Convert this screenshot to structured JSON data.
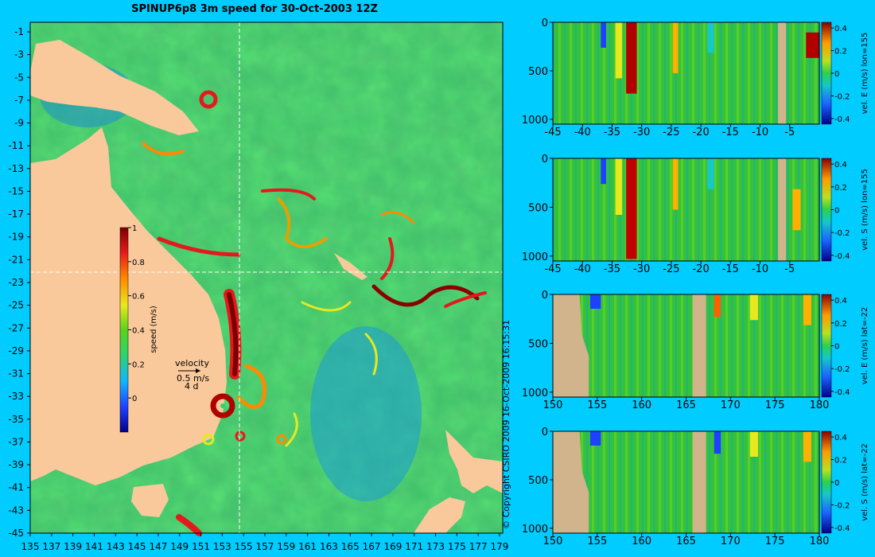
{
  "title": "SPINUP6p8 3m speed for 30-Oct-2003 12Z",
  "copyright": "© Copyright CSIRO 2009  16-Oct-2009 16:15:31",
  "colors": {
    "background": "#00ccff",
    "land": "#f9c99b",
    "section_land": "#d2b48c",
    "crosshair": "#ffffff"
  },
  "map": {
    "lon_ticks": [
      "135",
      "137",
      "139",
      "141",
      "143",
      "145",
      "147",
      "149",
      "151",
      "153",
      "155",
      "157",
      "159",
      "161",
      "163",
      "165",
      "167",
      "169",
      "171",
      "173",
      "175",
      "177",
      "179"
    ],
    "lat_ticks": [
      "-1",
      "-3",
      "-5",
      "-7",
      "-9",
      "-11",
      "-13",
      "-15",
      "-17",
      "-19",
      "-21",
      "-23",
      "-25",
      "-27",
      "-29",
      "-31",
      "-33",
      "-35",
      "-37",
      "-39",
      "-41",
      "-43",
      "-45"
    ],
    "section_lon": 155,
    "section_lat": -22,
    "speed_colorbar": {
      "label": "speed (m/s)",
      "ticks": [
        "0",
        "0.2",
        "0.4",
        "0.6",
        "0.8",
        "1"
      ],
      "range": [
        -0.2,
        1
      ]
    },
    "velocity_key": {
      "label": "velocity",
      "speed": "0.5 m/s",
      "duration": "4 d"
    }
  },
  "sections": [
    {
      "id": "uE-lon155",
      "colorbar_label": "vel. E (m/s) lon=155",
      "x_ticks": [
        "-45",
        "-40",
        "-35",
        "-30",
        "-25",
        "-20",
        "-15",
        "-10",
        "-5"
      ],
      "y_ticks": [
        "0",
        "500",
        "1000"
      ],
      "cb_ticks": [
        "0.4",
        "0.2",
        "0",
        "-0.2",
        "-0.4"
      ]
    },
    {
      "id": "vS-lon155",
      "colorbar_label": "vel. S (m/s) lon=155",
      "x_ticks": [
        "-45",
        "-40",
        "-35",
        "-30",
        "-25",
        "-20",
        "-15",
        "-10",
        "-5"
      ],
      "y_ticks": [
        "0",
        "500",
        "1000"
      ],
      "cb_ticks": [
        "0.4",
        "0.2",
        "0",
        "-0.2",
        "-0.4"
      ]
    },
    {
      "id": "uE-lat22",
      "colorbar_label": "vel. E (m/s) lat=-22",
      "x_ticks": [
        "150",
        "155",
        "160",
        "165",
        "170",
        "175",
        "180"
      ],
      "y_ticks": [
        "0",
        "500",
        "1000"
      ],
      "cb_ticks": [
        "0.4",
        "0.2",
        "0",
        "-0.2",
        "-0.4"
      ]
    },
    {
      "id": "vS-lat22",
      "colorbar_label": "vel. S (m/s) lat=-22",
      "x_ticks": [
        "150",
        "155",
        "160",
        "165",
        "170",
        "175",
        "180"
      ],
      "y_ticks": [
        "0",
        "500",
        "1000"
      ],
      "cb_ticks": [
        "0.4",
        "0.2",
        "0",
        "-0.2",
        "-0.4"
      ]
    }
  ]
}
